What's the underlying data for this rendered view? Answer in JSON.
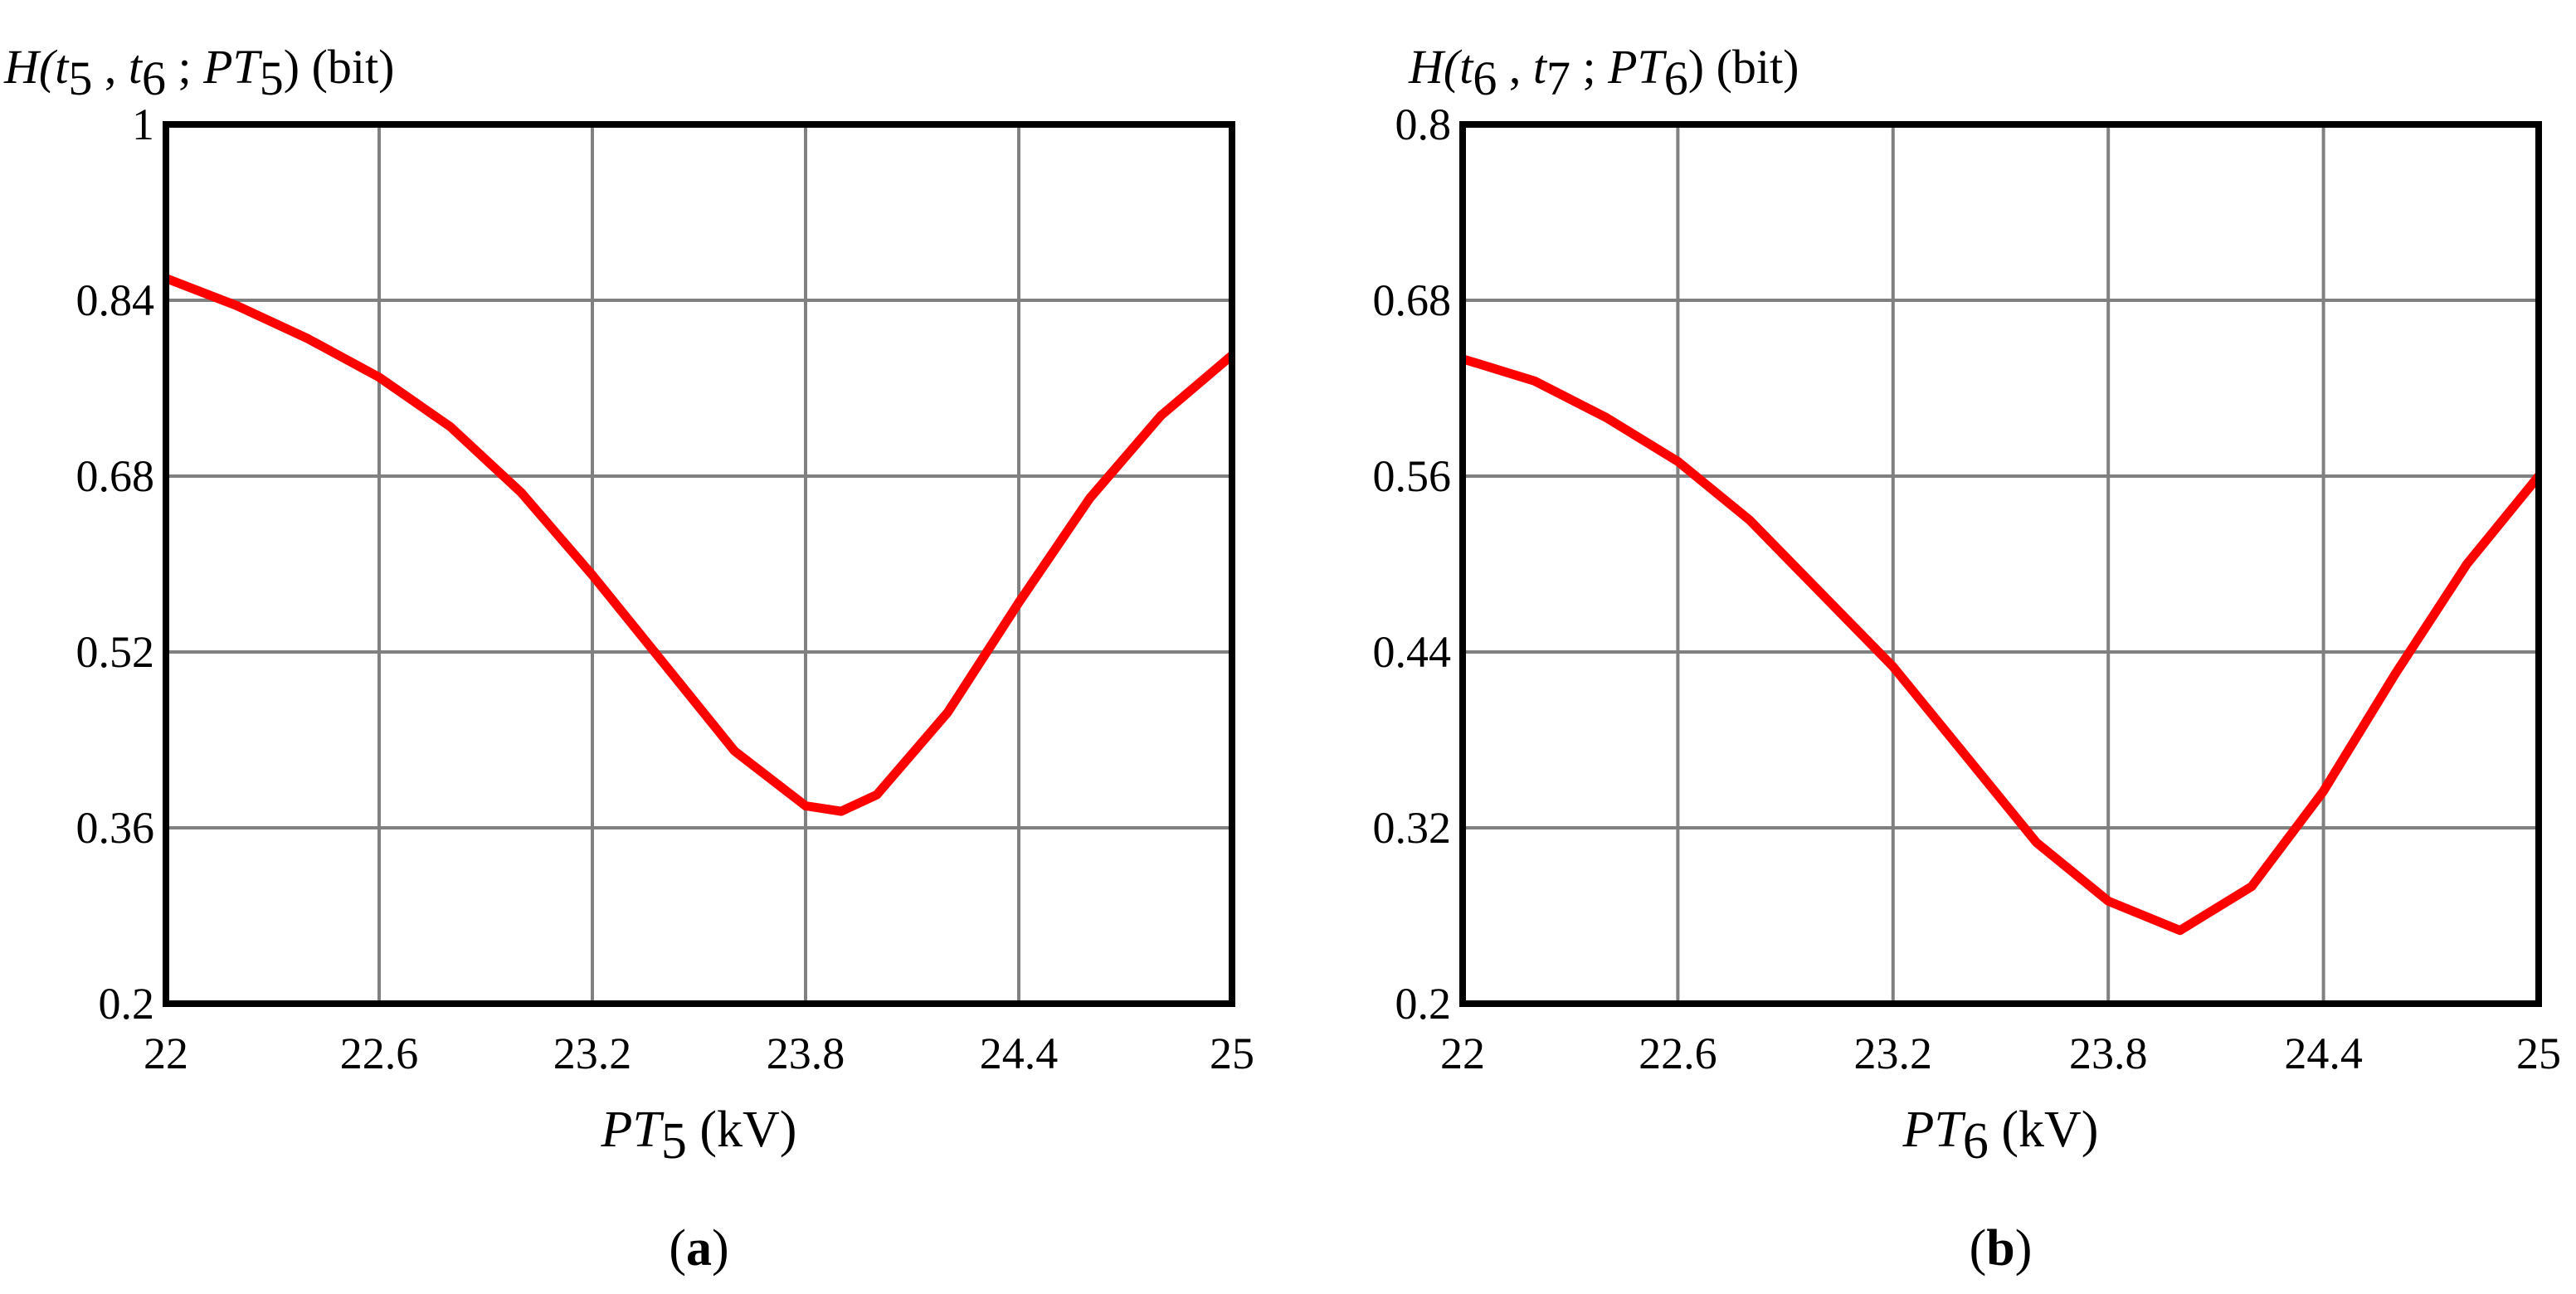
{
  "chart_data": [
    {
      "type": "line",
      "panel_label": "a",
      "ylabel": {
        "prefix": "H(",
        "t1": "t",
        "t1_sub": "5",
        "sep1": " , ",
        "t2": "t",
        "t2_sub": "6",
        "sep2": " ; ",
        "pt": "PT",
        "pt_sub": "5",
        "suffix": ") (bit)"
      },
      "xlabel": {
        "pt": "PT",
        "pt_sub": "5",
        "unit": " (kV)"
      },
      "xlim": [
        22,
        25
      ],
      "ylim": [
        0.2,
        1
      ],
      "xticks": [
        "22",
        "22.6",
        "23.2",
        "23.8",
        "24.4",
        "25"
      ],
      "yticks": [
        "1",
        "0.84",
        "0.68",
        "0.52",
        "0.36",
        "0.2"
      ],
      "grid": true,
      "line_color": "#ff0000",
      "x": [
        22.0,
        22.2,
        22.4,
        22.6,
        22.8,
        23.0,
        23.2,
        23.4,
        23.6,
        23.8,
        23.9,
        24.0,
        24.2,
        24.4,
        24.6,
        24.8,
        25.0
      ],
      "y": [
        0.86,
        0.835,
        0.805,
        0.77,
        0.725,
        0.665,
        0.59,
        0.51,
        0.43,
        0.38,
        0.375,
        0.39,
        0.465,
        0.565,
        0.66,
        0.735,
        0.79
      ]
    },
    {
      "type": "line",
      "panel_label": "b",
      "ylabel": {
        "prefix": "H(",
        "t1": "t",
        "t1_sub": "6",
        "sep1": " , ",
        "t2": "t",
        "t2_sub": "7",
        "sep2": " ; ",
        "pt": "PT",
        "pt_sub": "6",
        "suffix": ") (bit)"
      },
      "xlabel": {
        "pt": "PT",
        "pt_sub": "6",
        "unit": " (kV)"
      },
      "xlim": [
        22,
        25
      ],
      "ylim": [
        0.2,
        0.8
      ],
      "xticks": [
        "22",
        "22.6",
        "23.2",
        "23.8",
        "24.4",
        "25"
      ],
      "yticks": [
        "0.8",
        "0.68",
        "0.56",
        "0.44",
        "0.32",
        "0.2"
      ],
      "grid": true,
      "line_color": "#ff0000",
      "x": [
        22.0,
        22.2,
        22.4,
        22.6,
        22.8,
        23.0,
        23.2,
        23.4,
        23.6,
        23.8,
        24.0,
        24.2,
        24.4,
        24.6,
        24.8,
        25.0
      ],
      "y": [
        0.64,
        0.625,
        0.6,
        0.57,
        0.53,
        0.48,
        0.43,
        0.37,
        0.31,
        0.27,
        0.25,
        0.28,
        0.345,
        0.425,
        0.5,
        0.56
      ]
    }
  ]
}
